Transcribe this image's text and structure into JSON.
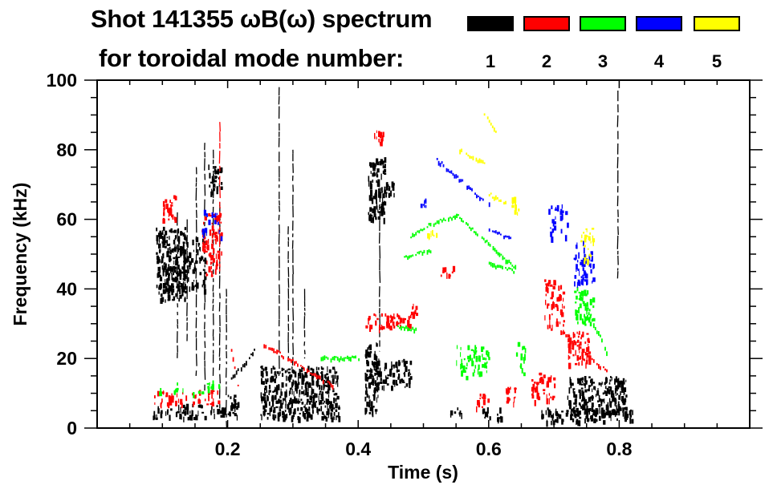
{
  "chart_data": {
    "type": "heatmap",
    "title": "Shot 141355 ωB(ω) spectrum",
    "subtitle": "for toroidal mode number:",
    "xlabel": "Time (s)",
    "ylabel": "Frequency (kHz)",
    "xlim": [
      0.0,
      1.0
    ],
    "ylim": [
      0,
      100
    ],
    "x_ticks": [
      0.2,
      0.4,
      0.6,
      0.8
    ],
    "x_tick_labels": [
      "0.2",
      "0.4",
      "0.6",
      "0.8"
    ],
    "x_minor_step": 0.05,
    "y_ticks": [
      0,
      20,
      40,
      60,
      80,
      100
    ],
    "y_tick_labels": [
      "0",
      "20",
      "40",
      "60",
      "80",
      "100"
    ],
    "y_minor_step": 5,
    "grid": false,
    "legend": {
      "placement": "top-right",
      "entries": [
        {
          "label": "1",
          "mode": 1,
          "color": "#000000"
        },
        {
          "label": "2",
          "mode": 2,
          "color": "#ff0000"
        },
        {
          "label": "3",
          "mode": 3,
          "color": "#00ff00"
        },
        {
          "label": "4",
          "mode": 4,
          "color": "#0000ff"
        },
        {
          "label": "5",
          "mode": 5,
          "color": "#ffff00"
        }
      ]
    },
    "features": [
      {
        "mode": 1,
        "kind": "blob",
        "t": [
          0.09,
          0.135
        ],
        "f": [
          37,
          58
        ],
        "density": 0.9
      },
      {
        "mode": 1,
        "kind": "blob",
        "t": [
          0.12,
          0.165
        ],
        "f": [
          40,
          55
        ],
        "density": 0.5
      },
      {
        "mode": 1,
        "kind": "blob",
        "t": [
          0.085,
          0.195
        ],
        "f": [
          3,
          7
        ],
        "density": 0.6
      },
      {
        "mode": 1,
        "kind": "blob",
        "t": [
          0.17,
          0.19
        ],
        "f": [
          68,
          76
        ],
        "density": 0.8
      },
      {
        "mode": 1,
        "kind": "blob",
        "t": [
          0.2,
          0.215
        ],
        "f": [
          3,
          10
        ],
        "density": 0.8
      },
      {
        "mode": 1,
        "kind": "blob",
        "t": [
          0.25,
          0.37
        ],
        "f": [
          3,
          18
        ],
        "density": 0.85
      },
      {
        "mode": 1,
        "kind": "blob",
        "t": [
          0.41,
          0.43
        ],
        "f": [
          4,
          25
        ],
        "density": 0.9
      },
      {
        "mode": 1,
        "kind": "blob",
        "t": [
          0.42,
          0.48
        ],
        "f": [
          12,
          20
        ],
        "density": 0.7
      },
      {
        "mode": 1,
        "kind": "blob",
        "t": [
          0.415,
          0.44
        ],
        "f": [
          60,
          78
        ],
        "density": 0.85
      },
      {
        "mode": 1,
        "kind": "blob",
        "t": [
          0.43,
          0.455
        ],
        "f": [
          67,
          71
        ],
        "density": 0.8
      },
      {
        "mode": 1,
        "kind": "blob",
        "t": [
          0.54,
          0.56
        ],
        "f": [
          3,
          6
        ],
        "density": 0.5
      },
      {
        "mode": 1,
        "kind": "blob",
        "t": [
          0.59,
          0.62
        ],
        "f": [
          3,
          6
        ],
        "density": 0.6
      },
      {
        "mode": 1,
        "kind": "blob",
        "t": [
          0.68,
          0.82
        ],
        "f": [
          2,
          6
        ],
        "density": 0.8
      },
      {
        "mode": 1,
        "kind": "blob",
        "t": [
          0.72,
          0.81
        ],
        "f": [
          4,
          15
        ],
        "density": 0.85
      },
      {
        "mode": 1,
        "kind": "spike",
        "t": 0.123,
        "f": [
          20,
          62
        ]
      },
      {
        "mode": 1,
        "kind": "spike",
        "t": 0.138,
        "f": [
          25,
          60
        ]
      },
      {
        "mode": 1,
        "kind": "spike",
        "t": 0.152,
        "f": [
          15,
          75
        ]
      },
      {
        "mode": 1,
        "kind": "spike",
        "t": 0.165,
        "f": [
          10,
          82
        ]
      },
      {
        "mode": 1,
        "kind": "spike",
        "t": 0.178,
        "f": [
          15,
          80
        ]
      },
      {
        "mode": 1,
        "kind": "spike",
        "t": 0.188,
        "f": [
          5,
          65
        ]
      },
      {
        "mode": 1,
        "kind": "spike",
        "t": 0.198,
        "f": [
          0,
          40
        ]
      },
      {
        "mode": 1,
        "kind": "spike",
        "t": 0.279,
        "f": [
          15,
          98
        ]
      },
      {
        "mode": 1,
        "kind": "spike",
        "t": 0.3,
        "f": [
          18,
          80
        ]
      },
      {
        "mode": 1,
        "kind": "spike",
        "t": 0.293,
        "f": [
          20,
          58
        ]
      },
      {
        "mode": 1,
        "kind": "spike",
        "t": 0.318,
        "f": [
          20,
          40
        ]
      },
      {
        "mode": 1,
        "kind": "spike",
        "t": 0.433,
        "f": [
          22,
          68
        ]
      },
      {
        "mode": 1,
        "kind": "spike",
        "t": 0.798,
        "f": [
          43,
          97
        ]
      },
      {
        "mode": 1,
        "kind": "streak",
        "t": [
          0.205,
          0.24
        ],
        "f": [
          14,
          22
        ]
      },
      {
        "mode": 2,
        "kind": "blob",
        "t": [
          0.1,
          0.12
        ],
        "f": [
          60,
          67
        ],
        "density": 0.8
      },
      {
        "mode": 2,
        "kind": "blob",
        "t": [
          0.16,
          0.19
        ],
        "f": [
          44,
          62
        ],
        "density": 0.5
      },
      {
        "mode": 2,
        "kind": "blob",
        "t": [
          0.085,
          0.185
        ],
        "f": [
          7,
          11
        ],
        "density": 0.5
      },
      {
        "mode": 2,
        "kind": "spike",
        "t": 0.188,
        "f": [
          45,
          88
        ]
      },
      {
        "mode": 2,
        "kind": "streak",
        "t": [
          0.255,
          0.36
        ],
        "f": [
          24,
          12
        ]
      },
      {
        "mode": 2,
        "kind": "streak",
        "t": [
          0.205,
          0.215
        ],
        "f": [
          22,
          12
        ]
      },
      {
        "mode": 2,
        "kind": "blob",
        "t": [
          0.41,
          0.48
        ],
        "f": [
          29,
          33
        ],
        "density": 0.8
      },
      {
        "mode": 2,
        "kind": "blob",
        "t": [
          0.42,
          0.44
        ],
        "f": [
          82,
          86
        ],
        "density": 0.7
      },
      {
        "mode": 2,
        "kind": "blob",
        "t": [
          0.48,
          0.49
        ],
        "f": [
          33,
          37
        ],
        "density": 0.8
      },
      {
        "mode": 2,
        "kind": "blob",
        "t": [
          0.525,
          0.545
        ],
        "f": [
          44,
          47
        ],
        "density": 0.7
      },
      {
        "mode": 2,
        "kind": "blob",
        "t": [
          0.58,
          0.6
        ],
        "f": [
          6,
          10
        ],
        "density": 0.6
      },
      {
        "mode": 2,
        "kind": "blob",
        "t": [
          0.625,
          0.64
        ],
        "f": [
          7,
          12
        ],
        "density": 0.8
      },
      {
        "mode": 2,
        "kind": "blob",
        "t": [
          0.665,
          0.7
        ],
        "f": [
          8,
          16
        ],
        "density": 0.6
      },
      {
        "mode": 2,
        "kind": "blob",
        "t": [
          0.685,
          0.715
        ],
        "f": [
          28,
          43
        ],
        "density": 0.45
      },
      {
        "mode": 2,
        "kind": "streak",
        "t": [
          0.71,
          0.78
        ],
        "f": [
          28,
          16
        ]
      },
      {
        "mode": 2,
        "kind": "blob",
        "t": [
          0.72,
          0.755
        ],
        "f": [
          18,
          28
        ],
        "density": 0.75
      },
      {
        "mode": 3,
        "kind": "streak",
        "t": [
          0.47,
          0.51
        ],
        "f": [
          49,
          51
        ]
      },
      {
        "mode": 3,
        "kind": "streak",
        "t": [
          0.48,
          0.5
        ],
        "f": [
          55,
          57
        ]
      },
      {
        "mode": 3,
        "kind": "streak",
        "t": [
          0.505,
          0.55
        ],
        "f": [
          58,
          61
        ]
      },
      {
        "mode": 3,
        "kind": "streak",
        "t": [
          0.55,
          0.64
        ],
        "f": [
          61,
          46
        ]
      },
      {
        "mode": 3,
        "kind": "streak",
        "t": [
          0.6,
          0.64
        ],
        "f": [
          47,
          45
        ]
      },
      {
        "mode": 3,
        "kind": "streak",
        "t": [
          0.46,
          0.49
        ],
        "f": [
          29,
          28
        ]
      },
      {
        "mode": 3,
        "kind": "streak",
        "t": [
          0.34,
          0.4
        ],
        "f": [
          20,
          20
        ]
      },
      {
        "mode": 3,
        "kind": "blob",
        "t": [
          0.55,
          0.6
        ],
        "f": [
          15,
          24
        ],
        "density": 0.5
      },
      {
        "mode": 3,
        "kind": "blob",
        "t": [
          0.64,
          0.66
        ],
        "f": [
          15,
          25
        ],
        "density": 0.3
      },
      {
        "mode": 3,
        "kind": "streak",
        "t": [
          0.735,
          0.78
        ],
        "f": [
          40,
          22
        ]
      },
      {
        "mode": 3,
        "kind": "blob",
        "t": [
          0.73,
          0.76
        ],
        "f": [
          30,
          40
        ],
        "density": 0.6
      },
      {
        "mode": 3,
        "kind": "blob",
        "t": [
          0.09,
          0.19
        ],
        "f": [
          10,
          14
        ],
        "density": 0.2
      },
      {
        "mode": 4,
        "kind": "streak",
        "t": [
          0.52,
          0.6
        ],
        "f": [
          77,
          64
        ]
      },
      {
        "mode": 4,
        "kind": "streak",
        "t": [
          0.6,
          0.635
        ],
        "f": [
          57,
          54
        ]
      },
      {
        "mode": 4,
        "kind": "blob",
        "t": [
          0.495,
          0.505
        ],
        "f": [
          64,
          66
        ],
        "density": 0.8
      },
      {
        "mode": 4,
        "kind": "blob",
        "t": [
          0.73,
          0.76
        ],
        "f": [
          42,
          54
        ],
        "density": 0.6
      },
      {
        "mode": 4,
        "kind": "blob",
        "t": [
          0.69,
          0.72
        ],
        "f": [
          54,
          65
        ],
        "density": 0.3
      },
      {
        "mode": 4,
        "kind": "blob",
        "t": [
          0.16,
          0.19
        ],
        "f": [
          55,
          63
        ],
        "density": 0.25
      },
      {
        "mode": 5,
        "kind": "streak",
        "t": [
          0.555,
          0.6
        ],
        "f": [
          80,
          75
        ]
      },
      {
        "mode": 5,
        "kind": "streak",
        "t": [
          0.6,
          0.63
        ],
        "f": [
          67,
          64
        ]
      },
      {
        "mode": 5,
        "kind": "streak",
        "t": [
          0.59,
          0.61
        ],
        "f": [
          91,
          85
        ]
      },
      {
        "mode": 5,
        "kind": "blob",
        "t": [
          0.635,
          0.645
        ],
        "f": [
          62,
          67
        ],
        "density": 0.8
      },
      {
        "mode": 5,
        "kind": "blob",
        "t": [
          0.505,
          0.52
        ],
        "f": [
          54,
          57
        ],
        "density": 0.6
      },
      {
        "mode": 5,
        "kind": "blob",
        "t": [
          0.74,
          0.76
        ],
        "f": [
          48,
          58
        ],
        "density": 0.5
      }
    ]
  }
}
